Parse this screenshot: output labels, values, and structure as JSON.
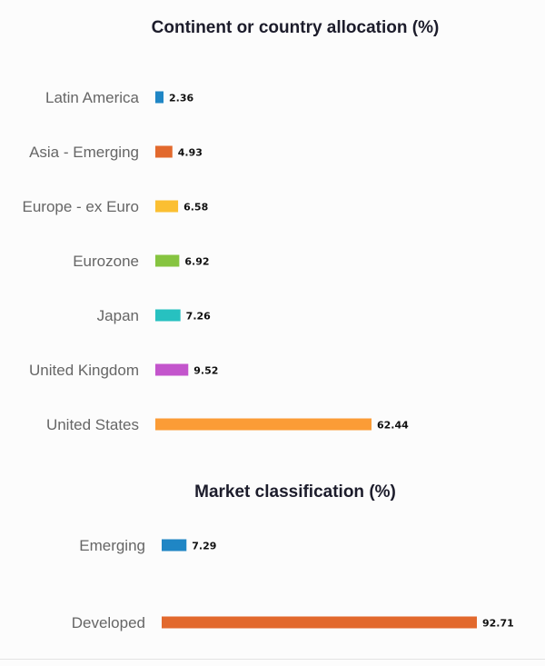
{
  "chart_data": [
    {
      "type": "bar",
      "orientation": "horizontal",
      "title": "Continent or country allocation (%)",
      "categories": [
        "Latin America",
        "Asia - Emerging",
        "Europe - ex Euro",
        "Eurozone",
        "Japan",
        "United Kingdom",
        "United States"
      ],
      "values": [
        2.36,
        4.93,
        6.58,
        6.92,
        7.26,
        9.52,
        62.44
      ],
      "value_labels": [
        "2.36",
        "4.93",
        "6.58",
        "6.92",
        "7.26",
        "9.52",
        "62.44"
      ],
      "colors": [
        "#1f86c5",
        "#e2692d",
        "#fbbf32",
        "#86c440",
        "#27c1c0",
        "#c355cc",
        "#fb9c36"
      ],
      "grid": false,
      "legend": "none"
    },
    {
      "type": "bar",
      "orientation": "horizontal",
      "title": "Market classification (%)",
      "categories": [
        "Emerging",
        "Developed"
      ],
      "values": [
        7.29,
        92.71
      ],
      "value_labels": [
        "7.29",
        "92.71"
      ],
      "colors": [
        "#1f86c5",
        "#e2692d"
      ],
      "grid": false,
      "legend": "none"
    }
  ]
}
